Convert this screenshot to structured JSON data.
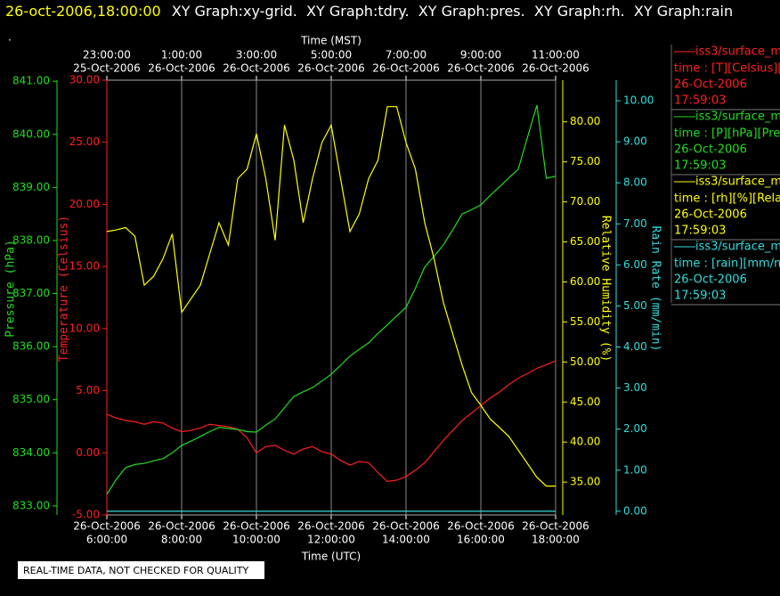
{
  "chart_data": {
    "type": "line",
    "title": "26-oct-2006,18:00:00",
    "subtitle": "XY Graph:xy-grid.  XY Graph:tdry.  XY Graph:pres.  XY Graph:rh.  XY Graph:rain",
    "annotation": ".",
    "footer": "REAL-TIME DATA, NOT CHECKED FOR QUALITY",
    "xlabel": "Time (UTC)",
    "x2label": "Time (MST)",
    "grid": true,
    "xlim": [
      "2006-10-26T06:00",
      "2006-10-26T18:00"
    ],
    "xticks": [
      {
        "value": "2006-10-26T06:00",
        "label": [
          "26-Oct-2006",
          "6:00:00"
        ]
      },
      {
        "value": "2006-10-26T08:00",
        "label": [
          "26-Oct-2006",
          "8:00:00"
        ]
      },
      {
        "value": "2006-10-26T10:00",
        "label": [
          "26-Oct-2006",
          "10:00:00"
        ]
      },
      {
        "value": "2006-10-26T12:00",
        "label": [
          "26-Oct-2006",
          "12:00:00"
        ]
      },
      {
        "value": "2006-10-26T14:00",
        "label": [
          "26-Oct-2006",
          "14:00:00"
        ]
      },
      {
        "value": "2006-10-26T16:00",
        "label": [
          "26-Oct-2006",
          "16:00:00"
        ]
      },
      {
        "value": "2006-10-26T18:00",
        "label": [
          "26-Oct-2006",
          "18:00:00"
        ]
      }
    ],
    "x2ticks": [
      {
        "value": "2006-10-26T06:00",
        "label": [
          "23:00:00",
          "25-Oct-2006"
        ]
      },
      {
        "value": "2006-10-26T08:00",
        "label": [
          "1:00:00",
          "26-Oct-2006"
        ]
      },
      {
        "value": "2006-10-26T10:00",
        "label": [
          "3:00:00",
          "26-Oct-2006"
        ]
      },
      {
        "value": "2006-10-26T12:00",
        "label": [
          "5:00:00",
          "26-Oct-2006"
        ]
      },
      {
        "value": "2006-10-26T14:00",
        "label": [
          "7:00:00",
          "26-Oct-2006"
        ]
      },
      {
        "value": "2006-10-26T16:00",
        "label": [
          "9:00:00",
          "26-Oct-2006"
        ]
      },
      {
        "value": "2006-10-26T18:00",
        "label": [
          "11:00:00",
          "26-Oct-2006"
        ]
      }
    ],
    "x": [
      "2006-10-26T06:00",
      "2006-10-26T06:15",
      "2006-10-26T06:30",
      "2006-10-26T06:45",
      "2006-10-26T07:00",
      "2006-10-26T07:15",
      "2006-10-26T07:30",
      "2006-10-26T07:45",
      "2006-10-26T08:00",
      "2006-10-26T08:15",
      "2006-10-26T08:30",
      "2006-10-26T08:45",
      "2006-10-26T09:00",
      "2006-10-26T09:15",
      "2006-10-26T09:30",
      "2006-10-26T09:45",
      "2006-10-26T10:00",
      "2006-10-26T10:15",
      "2006-10-26T10:30",
      "2006-10-26T10:45",
      "2006-10-26T11:00",
      "2006-10-26T11:15",
      "2006-10-26T11:30",
      "2006-10-26T11:45",
      "2006-10-26T12:00",
      "2006-10-26T12:15",
      "2006-10-26T12:30",
      "2006-10-26T12:45",
      "2006-10-26T13:00",
      "2006-10-26T13:15",
      "2006-10-26T13:30",
      "2006-10-26T13:45",
      "2006-10-26T14:00",
      "2006-10-26T14:15",
      "2006-10-26T14:30",
      "2006-10-26T14:45",
      "2006-10-26T15:00",
      "2006-10-26T15:15",
      "2006-10-26T15:30",
      "2006-10-26T15:45",
      "2006-10-26T16:00",
      "2006-10-26T16:15",
      "2006-10-26T16:30",
      "2006-10-26T16:45",
      "2006-10-26T17:00",
      "2006-10-26T17:15",
      "2006-10-26T17:30",
      "2006-10-26T17:45",
      "2006-10-26T18:00"
    ],
    "series": [
      {
        "name": "iss3/surface_m",
        "legend_detail": "time : [T][Celsius][Te",
        "legend_date": "26-Oct-2006",
        "legend_time": "17:59:03",
        "color": "#ff2020",
        "ylabel": "Temperature (Celsius)",
        "ylim": [
          -5,
          30
        ],
        "yticks": [
          {
            "value": -5,
            "label": "-5.00"
          },
          {
            "value": 0,
            "label": "0.00"
          },
          {
            "value": 5,
            "label": "5.00"
          },
          {
            "value": 10,
            "label": "10.00"
          },
          {
            "value": 15,
            "label": "15.00"
          },
          {
            "value": 20,
            "label": "20.00"
          },
          {
            "value": 25,
            "label": "25.00"
          },
          {
            "value": 30,
            "label": "30.00"
          }
        ],
        "values": [
          3.1,
          2.8,
          2.6,
          2.5,
          2.3,
          2.5,
          2.4,
          2.0,
          1.7,
          1.8,
          2.0,
          2.3,
          2.2,
          2.1,
          1.9,
          1.2,
          0.0,
          0.5,
          0.6,
          0.2,
          -0.1,
          0.3,
          0.5,
          0.1,
          -0.1,
          -0.6,
          -1.0,
          -0.7,
          -0.8,
          -1.6,
          -2.3,
          -2.2,
          -1.9,
          -1.4,
          -0.8,
          0.1,
          1.0,
          1.8,
          2.6,
          3.2,
          3.8,
          4.4,
          4.9,
          5.5,
          6.0,
          6.4,
          6.8,
          7.1,
          7.4
        ]
      },
      {
        "name": "iss3/surface_m",
        "legend_detail": "time : [P][hPa][Pres",
        "legend_date": "26-Oct-2006",
        "legend_time": "17:59:03",
        "color": "#22dd22",
        "ylabel": "Pressure (hPa)",
        "ylim": [
          832.83,
          841.02
        ],
        "yticks": [
          {
            "value": 833,
            "label": "833.00"
          },
          {
            "value": 834,
            "label": "834.00"
          },
          {
            "value": 835,
            "label": "835.00"
          },
          {
            "value": 836,
            "label": "836.00"
          },
          {
            "value": 837,
            "label": "837.00"
          },
          {
            "value": 838,
            "label": "838.00"
          },
          {
            "value": 839,
            "label": "839.00"
          },
          {
            "value": 840,
            "label": "840.00"
          },
          {
            "value": 841,
            "label": "841.00"
          }
        ],
        "values": [
          833.22,
          833.5,
          833.72,
          833.78,
          833.8,
          833.85,
          833.89,
          834.0,
          834.14,
          834.22,
          834.31,
          834.4,
          834.48,
          834.46,
          834.44,
          834.4,
          834.39,
          834.52,
          834.64,
          834.85,
          835.06,
          835.15,
          835.23,
          835.35,
          835.48,
          835.65,
          835.82,
          835.95,
          836.07,
          836.25,
          836.41,
          836.58,
          836.74,
          837.1,
          837.5,
          837.7,
          837.92,
          838.2,
          838.5,
          838.58,
          838.67,
          838.85,
          839.01,
          839.18,
          839.34,
          839.95,
          840.55,
          839.17,
          839.21
        ]
      },
      {
        "name": "iss3/surface_m",
        "legend_detail": "time : [rh][%][Relati",
        "legend_date": "26-Oct-2006",
        "legend_time": "17:59:03",
        "color": "#ffff00",
        "ylabel": "Relative Humidity (%)",
        "ylim": [
          30.9,
          85.2
        ],
        "yticks": [
          {
            "value": 35,
            "label": "35.00"
          },
          {
            "value": 40,
            "label": "40.00"
          },
          {
            "value": 45,
            "label": "45.00"
          },
          {
            "value": 50,
            "label": "50.00"
          },
          {
            "value": 55,
            "label": "55.00"
          },
          {
            "value": 60,
            "label": "60.00"
          },
          {
            "value": 65,
            "label": "65.00"
          },
          {
            "value": 70,
            "label": "70.00"
          },
          {
            "value": 75,
            "label": "75.00"
          },
          {
            "value": 80,
            "label": "80.00"
          }
        ],
        "values": [
          66.3,
          66.5,
          66.8,
          65.7,
          59.6,
          60.7,
          62.9,
          66.0,
          56.2,
          57.9,
          59.6,
          63.5,
          67.4,
          64.6,
          72.9,
          74.1,
          78.5,
          72.9,
          65.2,
          79.6,
          75.2,
          67.4,
          72.9,
          77.4,
          79.6,
          72.9,
          66.3,
          68.5,
          72.9,
          75.2,
          81.9,
          81.9,
          77.4,
          74.1,
          67.4,
          62.9,
          57.4,
          53.5,
          49.6,
          46.2,
          44.6,
          42.9,
          41.8,
          40.7,
          39.0,
          37.3,
          35.6,
          34.5,
          34.5
        ]
      },
      {
        "name": "iss3/surface_m",
        "legend_detail": "time : [rain][mm/min",
        "legend_date": "26-Oct-2006",
        "legend_time": "17:59:03",
        "color": "#33dddd",
        "ylabel": "Rain Rate (mm/min)",
        "ylim": [
          -0.09,
          10.5
        ],
        "yticks": [
          {
            "value": 0,
            "label": "0.00"
          },
          {
            "value": 1,
            "label": "1.00"
          },
          {
            "value": 2,
            "label": "2.00"
          },
          {
            "value": 3,
            "label": "3.00"
          },
          {
            "value": 4,
            "label": "4.00"
          },
          {
            "value": 5,
            "label": "5.00"
          },
          {
            "value": 6,
            "label": "6.00"
          },
          {
            "value": 7,
            "label": "7.00"
          },
          {
            "value": 8,
            "label": "8.00"
          },
          {
            "value": 9,
            "label": "9.00"
          },
          {
            "value": 10,
            "label": "10.00"
          }
        ],
        "values": [
          0,
          0,
          0,
          0,
          0,
          0,
          0,
          0,
          0,
          0,
          0,
          0,
          0,
          0,
          0,
          0,
          0,
          0,
          0,
          0,
          0,
          0,
          0,
          0,
          0,
          0,
          0,
          0,
          0,
          0,
          0,
          0,
          0,
          0,
          0,
          0,
          0,
          0,
          0,
          0,
          0,
          0,
          0,
          0,
          0,
          0,
          0,
          0,
          0
        ]
      }
    ]
  }
}
